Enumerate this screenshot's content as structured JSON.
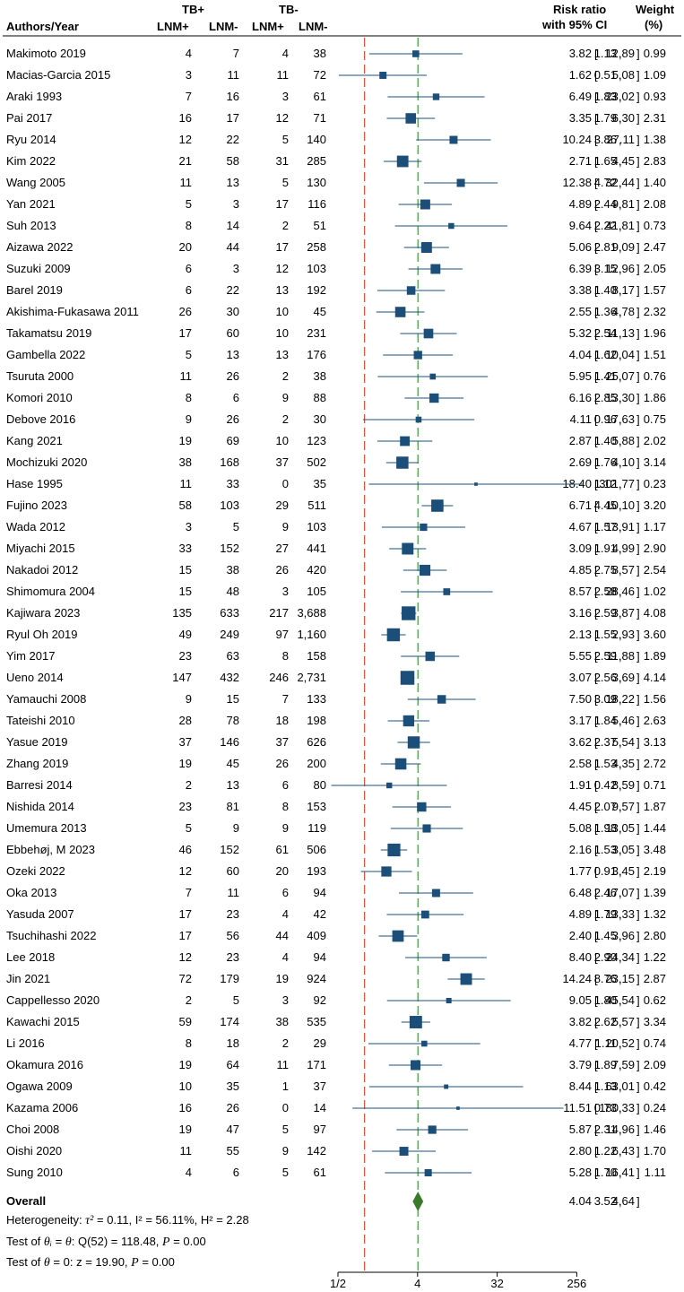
{
  "chart_data": {
    "type": "forest",
    "scale": "log2",
    "headers": {
      "authors": "Authors/Year",
      "tb_pos": "TB+",
      "tb_neg": "TB-",
      "lnm_pos": "LNM+",
      "lnm_neg": "LNM-",
      "rr_line1": "Risk ratio",
      "rr_line2": "with 95% CI",
      "w_line1": "Weight",
      "w_line2": "(%)"
    },
    "x_ticks": [
      {
        "value": 0.5,
        "label": "1/2"
      },
      {
        "value": 4,
        "label": "4"
      },
      {
        "value": 32,
        "label": "32"
      },
      {
        "value": 256,
        "label": "256"
      }
    ],
    "null_line": 1,
    "pooled_line": 4.04,
    "studies": [
      {
        "author": "Makimoto 2019",
        "tp_lnm_pos": "4",
        "tp_lnm_neg": "7",
        "tn_lnm_pos": "4",
        "tn_lnm_neg": "38",
        "rr": "3.82",
        "lo": "1.13",
        "hi": "12.89",
        "weight": "0.99"
      },
      {
        "author": "Macias-Garcia 2015",
        "tp_lnm_pos": "3",
        "tp_lnm_neg": "11",
        "tn_lnm_pos": "11",
        "tn_lnm_neg": "72",
        "rr": "1.62",
        "lo": "0.51",
        "hi": "5.08",
        "weight": "1.09"
      },
      {
        "author": "Araki 1993",
        "tp_lnm_pos": "7",
        "tp_lnm_neg": "16",
        "tn_lnm_pos": "3",
        "tn_lnm_neg": "61",
        "rr": "6.49",
        "lo": "1.83",
        "hi": "23.02",
        "weight": "0.93"
      },
      {
        "author": "Pai 2017",
        "tp_lnm_pos": "16",
        "tp_lnm_neg": "17",
        "tn_lnm_pos": "12",
        "tn_lnm_neg": "71",
        "rr": "3.35",
        "lo": "1.79",
        "hi": "6.30",
        "weight": "2.31"
      },
      {
        "author": "Ryu 2014",
        "tp_lnm_pos": "12",
        "tp_lnm_neg": "22",
        "tn_lnm_pos": "5",
        "tn_lnm_neg": "140",
        "rr": "10.24",
        "lo": "3.86",
        "hi": "27.11",
        "weight": "1.38"
      },
      {
        "author": "Kim 2022",
        "tp_lnm_pos": "21",
        "tp_lnm_neg": "58",
        "tn_lnm_pos": "31",
        "tn_lnm_neg": "285",
        "rr": "2.71",
        "lo": "1.65",
        "hi": "4.45",
        "weight": "2.83"
      },
      {
        "author": "Wang 2005",
        "tp_lnm_pos": "11",
        "tp_lnm_neg": "13",
        "tn_lnm_pos": "5",
        "tn_lnm_neg": "130",
        "rr": "12.38",
        "lo": "4.72",
        "hi": "32.44",
        "weight": "1.40"
      },
      {
        "author": "Yan 2021",
        "tp_lnm_pos": "5",
        "tp_lnm_neg": "3",
        "tn_lnm_pos": "17",
        "tn_lnm_neg": "116",
        "rr": "4.89",
        "lo": "2.44",
        "hi": "9.81",
        "weight": "2.08"
      },
      {
        "author": "Suh 2013",
        "tp_lnm_pos": "8",
        "tp_lnm_neg": "14",
        "tn_lnm_pos": "2",
        "tn_lnm_neg": "51",
        "rr": "9.64",
        "lo": "2.22",
        "hi": "41.81",
        "weight": "0.73"
      },
      {
        "author": "Aizawa 2022",
        "tp_lnm_pos": "20",
        "tp_lnm_neg": "44",
        "tn_lnm_pos": "17",
        "tn_lnm_neg": "258",
        "rr": "5.06",
        "lo": "2.81",
        "hi": "9.09",
        "weight": "2.47"
      },
      {
        "author": "Suzuki 2009",
        "tp_lnm_pos": "6",
        "tp_lnm_neg": "3",
        "tn_lnm_pos": "12",
        "tn_lnm_neg": "103",
        "rr": "6.39",
        "lo": "3.15",
        "hi": "12.96",
        "weight": "2.05"
      },
      {
        "author": "Barel 2019",
        "tp_lnm_pos": "6",
        "tp_lnm_neg": "22",
        "tn_lnm_pos": "13",
        "tn_lnm_neg": "192",
        "rr": "3.38",
        "lo": "1.40",
        "hi": "8.17",
        "weight": "1.57"
      },
      {
        "author": "Akishima-Fukasawa 2011",
        "tp_lnm_pos": "26",
        "tp_lnm_neg": "30",
        "tn_lnm_pos": "10",
        "tn_lnm_neg": "45",
        "rr": "2.55",
        "lo": "1.36",
        "hi": "4.78",
        "weight": "2.32"
      },
      {
        "author": "Takamatsu 2019",
        "tp_lnm_pos": "17",
        "tp_lnm_neg": "60",
        "tn_lnm_pos": "10",
        "tn_lnm_neg": "231",
        "rr": "5.32",
        "lo": "2.54",
        "hi": "11.13",
        "weight": "1.96"
      },
      {
        "author": "Gambella 2022",
        "tp_lnm_pos": "5",
        "tp_lnm_neg": "13",
        "tn_lnm_pos": "13",
        "tn_lnm_neg": "176",
        "rr": "4.04",
        "lo": "1.62",
        "hi": "10.04",
        "weight": "1.51"
      },
      {
        "author": "Tsuruta 2000",
        "tp_lnm_pos": "11",
        "tp_lnm_neg": "26",
        "tn_lnm_pos": "2",
        "tn_lnm_neg": "38",
        "rr": "5.95",
        "lo": "1.41",
        "hi": "25.07",
        "weight": "0.76"
      },
      {
        "author": "Komori 2010",
        "tp_lnm_pos": "8",
        "tp_lnm_neg": "6",
        "tn_lnm_pos": "9",
        "tn_lnm_neg": "88",
        "rr": "6.16",
        "lo": "2.85",
        "hi": "13.30",
        "weight": "1.86"
      },
      {
        "author": "Debove 2016",
        "tp_lnm_pos": "9",
        "tp_lnm_neg": "26",
        "tn_lnm_pos": "2",
        "tn_lnm_neg": "30",
        "rr": "4.11",
        "lo": "0.96",
        "hi": "17.63",
        "weight": "0.75"
      },
      {
        "author": "Kang 2021",
        "tp_lnm_pos": "19",
        "tp_lnm_neg": "69",
        "tn_lnm_pos": "10",
        "tn_lnm_neg": "123",
        "rr": "2.87",
        "lo": "1.40",
        "hi": "5.88",
        "weight": "2.02"
      },
      {
        "author": "Mochizuki 2020",
        "tp_lnm_pos": "38",
        "tp_lnm_neg": "168",
        "tn_lnm_pos": "37",
        "tn_lnm_neg": "502",
        "rr": "2.69",
        "lo": "1.76",
        "hi": "4.10",
        "weight": "3.14"
      },
      {
        "author": "Hase 1995",
        "tp_lnm_pos": "11",
        "tp_lnm_neg": "33",
        "tn_lnm_pos": "0",
        "tn_lnm_neg": "35",
        "rr": "18.40",
        "lo": "1.12",
        "hi": "301.77",
        "weight": "0.23"
      },
      {
        "author": "Fujino 2023",
        "tp_lnm_pos": "58",
        "tp_lnm_neg": "103",
        "tn_lnm_pos": "29",
        "tn_lnm_neg": "511",
        "rr": "6.71",
        "lo": "4.45",
        "hi": "10.10",
        "weight": "3.20"
      },
      {
        "author": "Wada 2012",
        "tp_lnm_pos": "3",
        "tp_lnm_neg": "5",
        "tn_lnm_pos": "9",
        "tn_lnm_neg": "103",
        "rr": "4.67",
        "lo": "1.57",
        "hi": "13.91",
        "weight": "1.17"
      },
      {
        "author": "Miyachi 2015",
        "tp_lnm_pos": "33",
        "tp_lnm_neg": "152",
        "tn_lnm_pos": "27",
        "tn_lnm_neg": "441",
        "rr": "3.09",
        "lo": "1.91",
        "hi": "4.99",
        "weight": "2.90"
      },
      {
        "author": "Nakadoi 2012",
        "tp_lnm_pos": "15",
        "tp_lnm_neg": "38",
        "tn_lnm_pos": "26",
        "tn_lnm_neg": "420",
        "rr": "4.85",
        "lo": "2.75",
        "hi": "8.57",
        "weight": "2.54"
      },
      {
        "author": "Shimomura 2004",
        "tp_lnm_pos": "15",
        "tp_lnm_neg": "48",
        "tn_lnm_pos": "3",
        "tn_lnm_neg": "105",
        "rr": "8.57",
        "lo": "2.58",
        "hi": "28.46",
        "weight": "1.02"
      },
      {
        "author": "Kajiwara 2023",
        "tp_lnm_pos": "135",
        "tp_lnm_neg": "633",
        "tn_lnm_pos": "217",
        "tn_lnm_neg": "3,688",
        "rr": "3.16",
        "lo": "2.59",
        "hi": "3.87",
        "weight": "4.08"
      },
      {
        "author": "Ryul Oh 2019",
        "tp_lnm_pos": "49",
        "tp_lnm_neg": "249",
        "tn_lnm_pos": "97",
        "tn_lnm_neg": "1,160",
        "rr": "2.13",
        "lo": "1.55",
        "hi": "2.93",
        "weight": "3.60"
      },
      {
        "author": "Yim 2017",
        "tp_lnm_pos": "23",
        "tp_lnm_neg": "63",
        "tn_lnm_pos": "8",
        "tn_lnm_neg": "158",
        "rr": "5.55",
        "lo": "2.59",
        "hi": "11.88",
        "weight": "1.89"
      },
      {
        "author": "Ueno 2014",
        "tp_lnm_pos": "147",
        "tp_lnm_neg": "432",
        "tn_lnm_pos": "246",
        "tn_lnm_neg": "2,731",
        "rr": "3.07",
        "lo": "2.56",
        "hi": "3.69",
        "weight": "4.14"
      },
      {
        "author": "Yamauchi 2008",
        "tp_lnm_pos": "9",
        "tp_lnm_neg": "15",
        "tn_lnm_pos": "7",
        "tn_lnm_neg": "133",
        "rr": "7.50",
        "lo": "3.09",
        "hi": "18.22",
        "weight": "1.56"
      },
      {
        "author": "Tateishi 2010",
        "tp_lnm_pos": "28",
        "tp_lnm_neg": "78",
        "tn_lnm_pos": "18",
        "tn_lnm_neg": "198",
        "rr": "3.17",
        "lo": "1.84",
        "hi": "5.46",
        "weight": "2.63"
      },
      {
        "author": "Yasue 2019",
        "tp_lnm_pos": "37",
        "tp_lnm_neg": "146",
        "tn_lnm_pos": "37",
        "tn_lnm_neg": "626",
        "rr": "3.62",
        "lo": "2.37",
        "hi": "5.54",
        "weight": "3.13"
      },
      {
        "author": "Zhang 2019",
        "tp_lnm_pos": "19",
        "tp_lnm_neg": "45",
        "tn_lnm_pos": "26",
        "tn_lnm_neg": "200",
        "rr": "2.58",
        "lo": "1.53",
        "hi": "4.35",
        "weight": "2.72"
      },
      {
        "author": "Barresi 2014",
        "tp_lnm_pos": "2",
        "tp_lnm_neg": "13",
        "tn_lnm_pos": "6",
        "tn_lnm_neg": "80",
        "rr": "1.91",
        "lo": "0.42",
        "hi": "8.59",
        "weight": "0.71"
      },
      {
        "author": "Nishida 2014",
        "tp_lnm_pos": "23",
        "tp_lnm_neg": "81",
        "tn_lnm_pos": "8",
        "tn_lnm_neg": "153",
        "rr": "4.45",
        "lo": "2.07",
        "hi": "9.57",
        "weight": "1.87"
      },
      {
        "author": "Umemura 2013",
        "tp_lnm_pos": "5",
        "tp_lnm_neg": "9",
        "tn_lnm_pos": "9",
        "tn_lnm_neg": "119",
        "rr": "5.08",
        "lo": "1.98",
        "hi": "13.05",
        "weight": "1.44"
      },
      {
        "author": "Ebbehøj, M 2023",
        "tp_lnm_pos": "46",
        "tp_lnm_neg": "152",
        "tn_lnm_pos": "61",
        "tn_lnm_neg": "506",
        "rr": "2.16",
        "lo": "1.53",
        "hi": "3.05",
        "weight": "3.48"
      },
      {
        "author": "Ozeki 2022",
        "tp_lnm_pos": "12",
        "tp_lnm_neg": "60",
        "tn_lnm_pos": "20",
        "tn_lnm_neg": "193",
        "rr": "1.77",
        "lo": "0.91",
        "hi": "3.45",
        "weight": "2.19"
      },
      {
        "author": "Oka 2013",
        "tp_lnm_pos": "7",
        "tp_lnm_neg": "11",
        "tn_lnm_pos": "6",
        "tn_lnm_neg": "94",
        "rr": "6.48",
        "lo": "2.46",
        "hi": "17.07",
        "weight": "1.39"
      },
      {
        "author": "Yasuda 2007",
        "tp_lnm_pos": "17",
        "tp_lnm_neg": "23",
        "tn_lnm_pos": "4",
        "tn_lnm_neg": "42",
        "rr": "4.89",
        "lo": "1.79",
        "hi": "13.33",
        "weight": "1.32"
      },
      {
        "author": "Tsuchihashi 2022",
        "tp_lnm_pos": "17",
        "tp_lnm_neg": "56",
        "tn_lnm_pos": "44",
        "tn_lnm_neg": "409",
        "rr": "2.40",
        "lo": "1.45",
        "hi": "3.96",
        "weight": "2.80"
      },
      {
        "author": "Lee 2018",
        "tp_lnm_pos": "12",
        "tp_lnm_neg": "23",
        "tn_lnm_pos": "4",
        "tn_lnm_neg": "94",
        "rr": "8.40",
        "lo": "2.90",
        "hi": "24.34",
        "weight": "1.22"
      },
      {
        "author": "Jin 2021",
        "tp_lnm_pos": "72",
        "tp_lnm_neg": "179",
        "tn_lnm_pos": "19",
        "tn_lnm_neg": "924",
        "rr": "14.24",
        "lo": "8.76",
        "hi": "23.15",
        "weight": "2.87"
      },
      {
        "author": "Cappellesso 2020",
        "tp_lnm_pos": "2",
        "tp_lnm_neg": "5",
        "tn_lnm_pos": "3",
        "tn_lnm_neg": "92",
        "rr": "9.05",
        "lo": "1.80",
        "hi": "45.54",
        "weight": "0.62"
      },
      {
        "author": "Kawachi 2015",
        "tp_lnm_pos": "59",
        "tp_lnm_neg": "174",
        "tn_lnm_pos": "38",
        "tn_lnm_neg": "535",
        "rr": "3.82",
        "lo": "2.62",
        "hi": "5.57",
        "weight": "3.34"
      },
      {
        "author": "Li 2016",
        "tp_lnm_pos": "8",
        "tp_lnm_neg": "18",
        "tn_lnm_pos": "2",
        "tn_lnm_neg": "29",
        "rr": "4.77",
        "lo": "1.11",
        "hi": "20.52",
        "weight": "0.74"
      },
      {
        "author": "Okamura 2016",
        "tp_lnm_pos": "19",
        "tp_lnm_neg": "64",
        "tn_lnm_pos": "11",
        "tn_lnm_neg": "171",
        "rr": "3.79",
        "lo": "1.89",
        "hi": "7.59",
        "weight": "2.09"
      },
      {
        "author": "Ogawa 2009",
        "tp_lnm_pos": "10",
        "tp_lnm_neg": "35",
        "tn_lnm_pos": "1",
        "tn_lnm_neg": "37",
        "rr": "8.44",
        "lo": "1.13",
        "hi": "63.01",
        "weight": "0.42"
      },
      {
        "author": "Kazama 2006",
        "tp_lnm_pos": "16",
        "tp_lnm_neg": "26",
        "tn_lnm_pos": "0",
        "tn_lnm_neg": "14",
        "rr": "11.51",
        "lo": "0.73",
        "hi": "180.33",
        "weight": "0.24"
      },
      {
        "author": "Choi 2008",
        "tp_lnm_pos": "19",
        "tp_lnm_neg": "47",
        "tn_lnm_pos": "5",
        "tn_lnm_neg": "97",
        "rr": "5.87",
        "lo": "2.31",
        "hi": "14.96",
        "weight": "1.46"
      },
      {
        "author": "Oishi 2020",
        "tp_lnm_pos": "11",
        "tp_lnm_neg": "55",
        "tn_lnm_pos": "9",
        "tn_lnm_neg": "142",
        "rr": "2.80",
        "lo": "1.22",
        "hi": "6.43",
        "weight": "1.70"
      },
      {
        "author": "Sung 2010",
        "tp_lnm_pos": "4",
        "tp_lnm_neg": "6",
        "tn_lnm_pos": "5",
        "tn_lnm_neg": "61",
        "rr": "5.28",
        "lo": "1.70",
        "hi": "16.41",
        "weight": "1.11"
      }
    ],
    "overall": {
      "label": "Overall",
      "rr": "4.04",
      "lo": "3.52",
      "hi": "4.64"
    },
    "footnotes": {
      "heterogeneity_label": "Heterogeneity: ",
      "heterogeneity_rest": " = 0.11, I² = 56.11%, H² = 2.28",
      "test1_label": "Test of ",
      "test1_mid": " = ",
      "test1_rest": ": Q(52) = 118.48, ",
      "test1_p": " = 0.00",
      "test2_label": "Test of ",
      "test2_rest": " = 0: z = 19.90, ",
      "test2_p": " = 0.00",
      "tau": "τ²",
      "theta": "θ",
      "theta_i": "θᵢ",
      "p": "P"
    },
    "colors": {
      "marker": "#1b4f7a",
      "ci_line": "#1b4f7a",
      "null_line": "#e0523a",
      "pooled_line": "#3a9a3a",
      "diamond": "#3a7a2a",
      "text": "#000000"
    }
  }
}
